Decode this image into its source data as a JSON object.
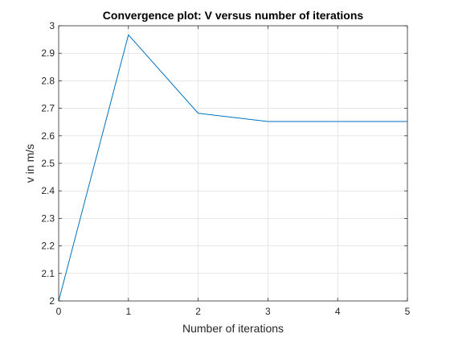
{
  "chart_data": {
    "type": "line",
    "title": "Convergence plot: V versus number of iterations",
    "xlabel": "Number of iterations",
    "ylabel": "v in m/s",
    "xlim": [
      0,
      5
    ],
    "ylim": [
      2,
      3
    ],
    "x_ticks": [
      0,
      1,
      2,
      3,
      4,
      5
    ],
    "x_tick_labels": [
      "0",
      "1",
      "2",
      "3",
      "4",
      "5"
    ],
    "y_ticks": [
      2,
      2.1,
      2.2,
      2.3,
      2.4,
      2.5,
      2.6,
      2.7,
      2.8,
      2.9,
      3
    ],
    "y_tick_labels": [
      "2",
      "2.1",
      "2.2",
      "2.3",
      "2.4",
      "2.5",
      "2.6",
      "2.7",
      "2.8",
      "2.9",
      "3"
    ],
    "grid": true,
    "series": [
      {
        "x": [
          0,
          1,
          2,
          3,
          4,
          5
        ],
        "values": [
          2.0,
          2.967,
          2.682,
          2.652,
          2.652,
          2.652
        ],
        "color": "#0072BD"
      }
    ]
  }
}
